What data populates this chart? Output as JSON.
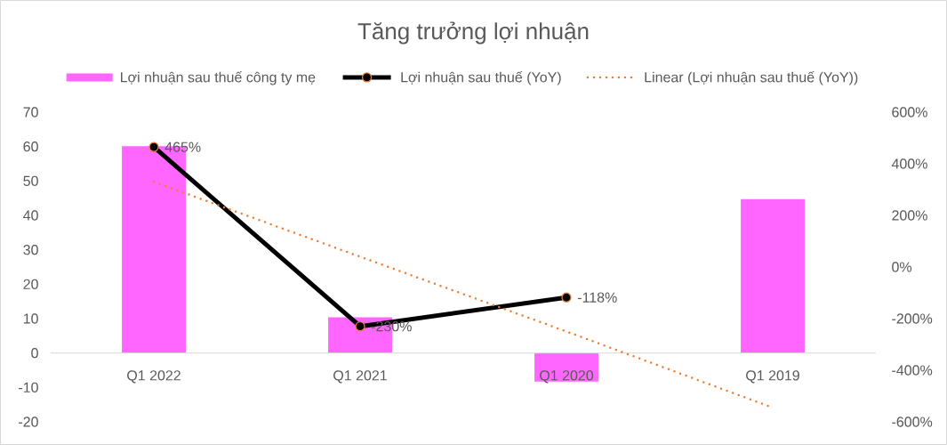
{
  "chart_data": {
    "type": "bar",
    "title": "Tăng trưởng lợi nhuận",
    "categories": [
      "Q1 2022",
      "Q1 2021",
      "Q1 2020",
      "Q1 2019"
    ],
    "series": [
      {
        "name": "Lợi nhuận sau thuế công ty mẹ",
        "color": "#ff66ff",
        "values": [
          60.1,
          10.4,
          -8.3,
          44.7
        ]
      },
      {
        "name": "Lợi nhuận sau thuế (YoY)",
        "type": "line",
        "axis": "y2",
        "color": "#000000",
        "marker": "circle",
        "line_style": "solid",
        "values": [
          465,
          -230,
          -118,
          null
        ],
        "value_labels": [
          "465%",
          "-230%",
          "-118%",
          null
        ]
      },
      {
        "name": "Linear (Lợi nhuận sau thuế (YoY))",
        "type": "line",
        "axis": "y2",
        "color": "#ed7d31",
        "marker": "none",
        "line_style": "dotted",
        "values": [
          330,
          40,
          -250,
          -545
        ]
      }
    ],
    "ylim": [
      -20,
      70
    ],
    "yticks": [
      -20,
      -10,
      0,
      10,
      20,
      30,
      40,
      50,
      60,
      70
    ],
    "y2lim": [
      -600,
      600
    ],
    "y2ticks": [
      {
        "value": -600,
        "label": "-600%"
      },
      {
        "value": -400,
        "label": "-400%"
      },
      {
        "value": -200,
        "label": "-200%"
      },
      {
        "value": 0,
        "label": "0%"
      },
      {
        "value": 200,
        "label": "200%"
      },
      {
        "value": 400,
        "label": "400%"
      },
      {
        "value": 600,
        "label": "600%"
      }
    ],
    "legend": "top"
  }
}
